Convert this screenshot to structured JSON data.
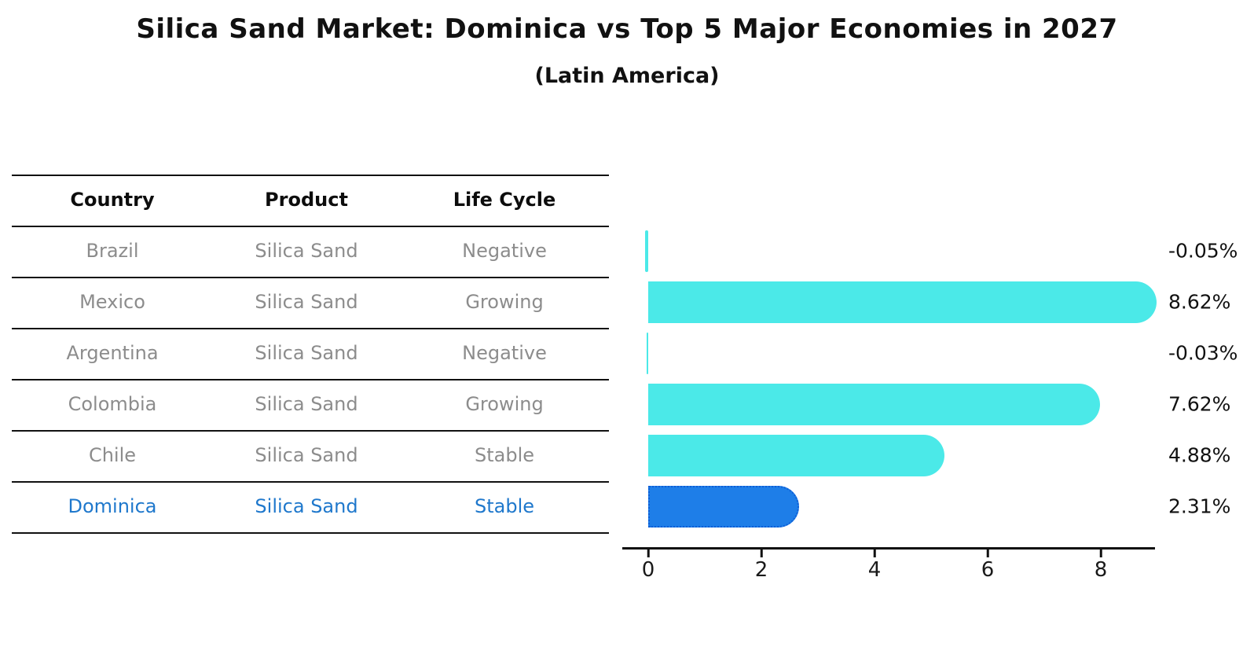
{
  "chart_data": {
    "type": "bar",
    "orientation": "horizontal",
    "title": "Silica Sand Market: Dominica vs Top 5 Major Economies in 2027",
    "subtitle": "(Latin America)",
    "xlabel": "",
    "ylabel": "",
    "x_ticks": [
      0,
      2,
      4,
      6,
      8
    ],
    "xlim": [
      -0.5,
      9.0
    ],
    "grid": false,
    "legend": "none",
    "table_headers": [
      "Country",
      "Product",
      "Life Cycle"
    ],
    "rows": [
      {
        "country": "Brazil",
        "product": "Silica Sand",
        "life_cycle": "Negative",
        "value": -0.05,
        "value_label": "-0.05%",
        "highlight": false
      },
      {
        "country": "Mexico",
        "product": "Silica Sand",
        "life_cycle": "Growing",
        "value": 8.62,
        "value_label": "8.62%",
        "highlight": false
      },
      {
        "country": "Argentina",
        "product": "Silica Sand",
        "life_cycle": "Negative",
        "value": -0.03,
        "value_label": "-0.03%",
        "highlight": false
      },
      {
        "country": "Colombia",
        "product": "Silica Sand",
        "life_cycle": "Growing",
        "value": 7.62,
        "value_label": "7.62%",
        "highlight": false
      },
      {
        "country": "Chile",
        "product": "Silica Sand",
        "life_cycle": "Stable",
        "value": 4.88,
        "value_label": "4.88%",
        "highlight": false
      },
      {
        "country": "Dominica",
        "product": "Silica Sand",
        "life_cycle": "Stable",
        "value": 2.31,
        "value_label": "2.31%",
        "highlight": true
      }
    ],
    "colors": {
      "bar_default": "#4BE9E8",
      "bar_highlight": "#1E7EE8",
      "bar_highlight_border": "#0E5ED6",
      "row_text": "#8c8c8c",
      "highlight_text": "#1f78cc",
      "header_text": "#0d0d0d",
      "axis": "#111111",
      "background": "#ffffff"
    }
  }
}
